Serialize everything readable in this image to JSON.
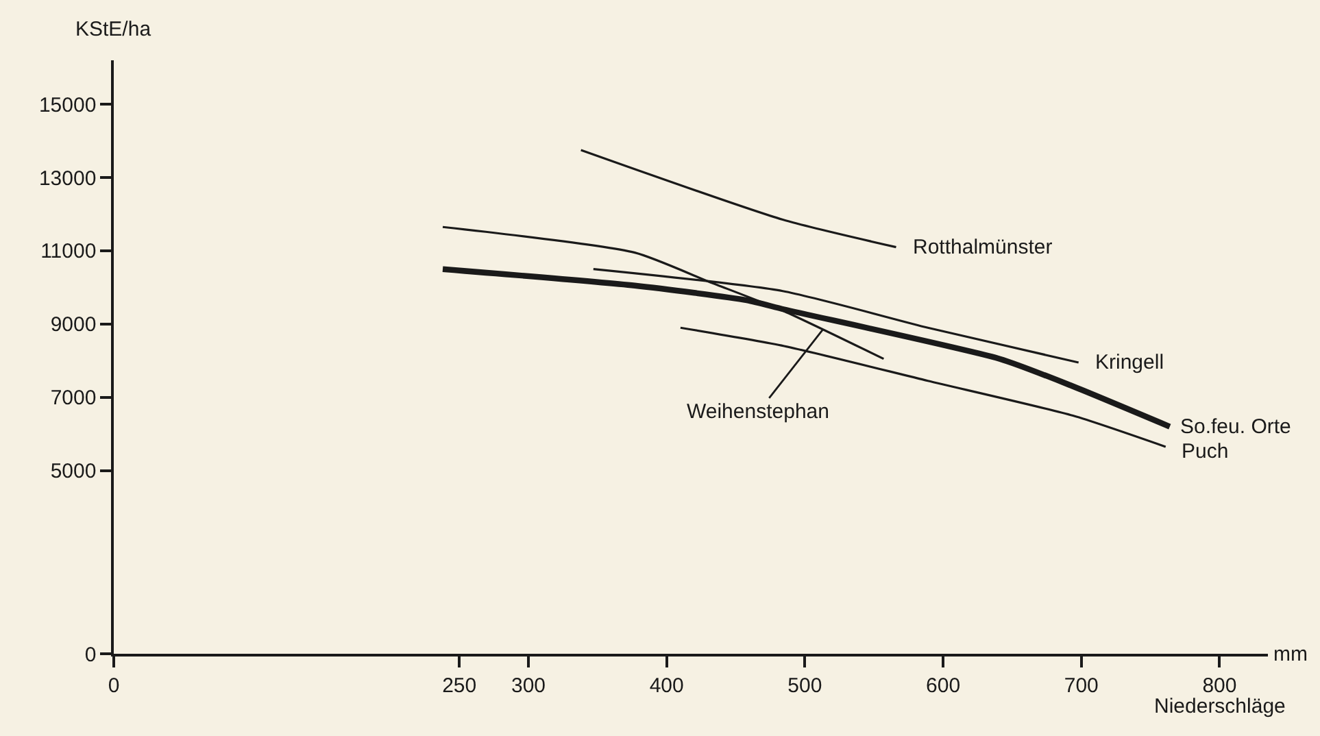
{
  "chart_data": {
    "type": "line",
    "ylabel": "KStE/ha",
    "xlabel": "Niederschläge",
    "xlim": [
      0,
      835
    ],
    "ylim": [
      0,
      16200
    ],
    "xticks": [
      0,
      250,
      300,
      400,
      500,
      600,
      700,
      800
    ],
    "yticks": [
      0,
      5000,
      7000,
      9000,
      11000,
      13000,
      15000
    ],
    "grid": false,
    "marker": "none",
    "line_style": "solid",
    "series": [
      {
        "color": "#1a1a1a",
        "x": [
          338,
          484,
          566
        ],
        "values": [
          13750,
          11850,
          11100
        ]
      },
      {
        "color": "#1a1a1a",
        "x": [
          238,
          377,
          431,
          485,
          557
        ],
        "values": [
          11650,
          10950,
          10150,
          9350,
          8050
        ]
      },
      {
        "color": "#1a1a1a",
        "x": [
          347,
          484,
          589,
          698
        ],
        "values": [
          10500,
          9900,
          8900,
          7950
        ]
      },
      {
        "color": "#1a1a1a",
        "x": [
          238,
          377,
          458,
          485,
          641,
          694,
          764
        ],
        "values": [
          10500,
          10050,
          9650,
          9400,
          8050,
          7300,
          6200
        ]
      },
      {
        "color": "#1a1a1a",
        "x": [
          410,
          485,
          589,
          694,
          761
        ],
        "values": [
          8900,
          8400,
          7450,
          6500,
          5650
        ]
      }
    ],
    "annotations": [
      {
        "text": "Rotthalmünster",
        "x": 566,
        "y": 11100
      },
      {
        "text": "Kringell",
        "x": 698,
        "y": 7950
      },
      {
        "text": "So.feu. Orte",
        "x": 764,
        "y": 6200
      },
      {
        "text": "Puch",
        "x": 761,
        "y": 5650
      },
      {
        "text": "Weihenstephan",
        "x": 513,
        "y": 8850
      },
      "mm"
    ]
  }
}
